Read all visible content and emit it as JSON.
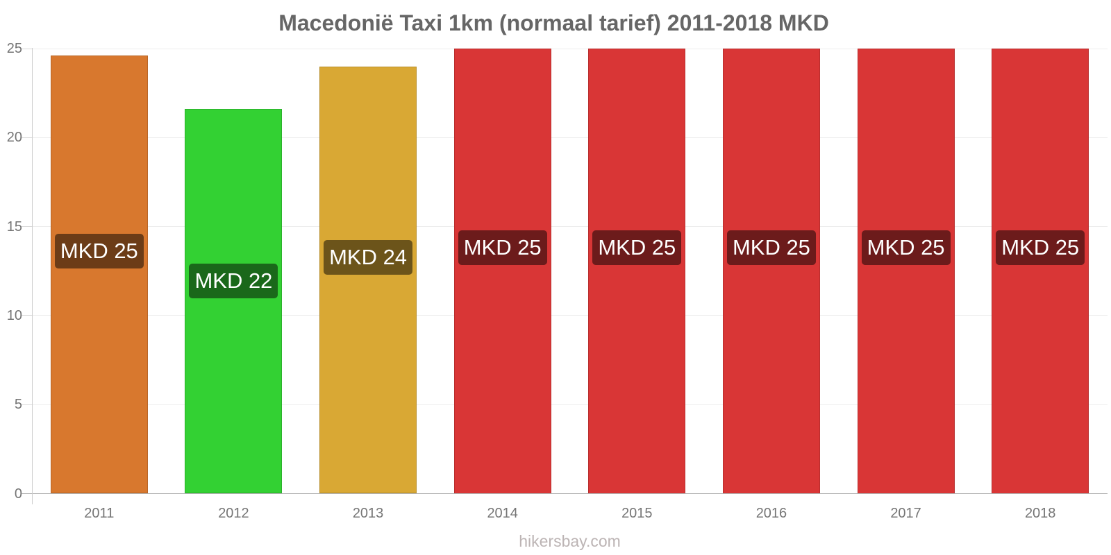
{
  "title": "Macedonië Taxi 1km (normaal tarief) 2011-2018 MKD",
  "watermark": "hikersbay.com",
  "chart_data": {
    "type": "bar",
    "title": "Macedonië Taxi 1km (normaal tarief) 2011-2018 MKD",
    "xlabel": "",
    "ylabel": "",
    "categories": [
      "2011",
      "2012",
      "2013",
      "2014",
      "2015",
      "2016",
      "2017",
      "2018"
    ],
    "values": [
      24.6,
      21.6,
      24,
      25,
      25,
      25,
      25,
      25
    ],
    "bar_labels": [
      "MKD 25",
      "MKD 22",
      "MKD 24",
      "MKD 25",
      "MKD 25",
      "MKD 25",
      "MKD 25",
      "MKD 25"
    ],
    "bar_colors": [
      "#d8782e",
      "#33d133",
      "#d9a834",
      "#d93636",
      "#d93636",
      "#d93636",
      "#d93636",
      "#d93636"
    ],
    "bar_label_bg_colors": [
      "#6c3c17",
      "#1a681a",
      "#6c541a",
      "#6c1b1b",
      "#6c1b1b",
      "#6c1b1b",
      "#6c1b1b",
      "#6c1b1b"
    ],
    "ylim": [
      0,
      25
    ],
    "yticks": [
      0,
      5,
      10,
      15,
      20,
      25
    ],
    "grid": true,
    "legend": "none"
  },
  "colors": {
    "background": "#ffffff",
    "title_text": "#666666",
    "tick_label_text": "#757575",
    "gridline": "#ededed",
    "tick_mark": "#d9d9d9",
    "axis_line": "#cccccc",
    "baseline": "#b3b3b3",
    "bar_label_text": "#ffffff",
    "watermark_text": "#bcb4b4"
  }
}
